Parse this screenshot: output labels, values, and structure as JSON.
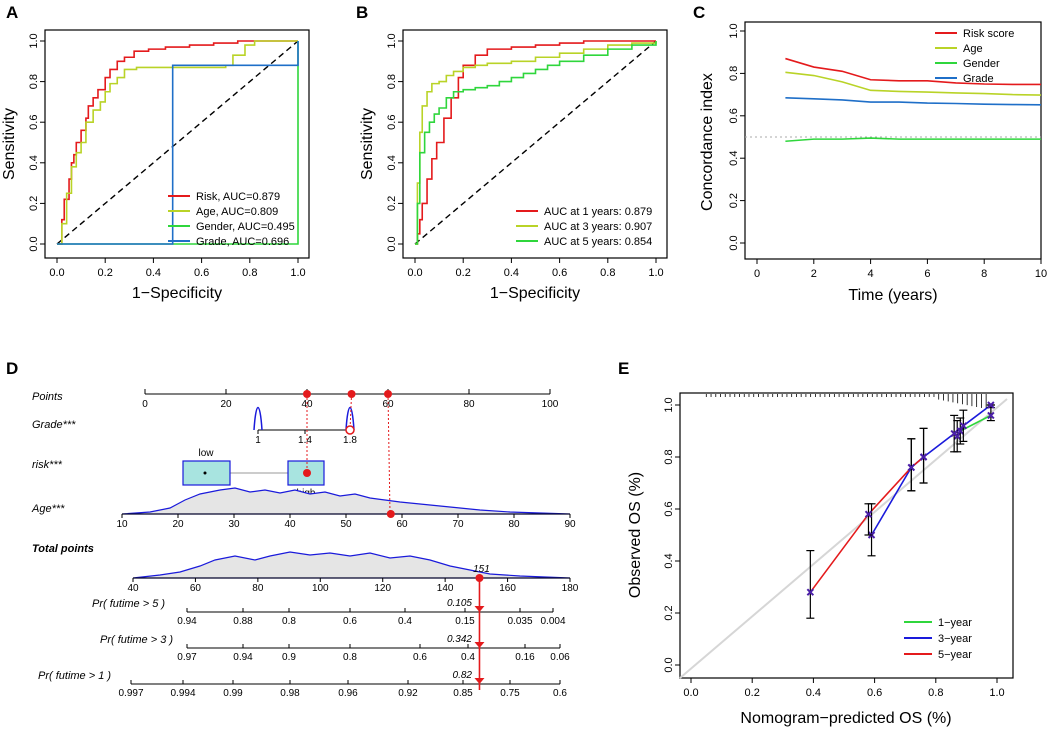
{
  "colors": {
    "red": "#e41a1c",
    "yellowgreen": "#b9d327",
    "green": "#2fd63c",
    "blue": "#1f6fc8",
    "navy": "#1a1adb",
    "box_fill": "#a8e4e0",
    "density_fill": "#e5e5e5",
    "grey_line": "#cccccc"
  },
  "chart_data": [
    {
      "panel": "A",
      "type": "line",
      "subtype": "roc",
      "xlabel": "1−Specificity",
      "ylabel": "Sensitivity",
      "xlim": [
        0,
        1
      ],
      "ylim": [
        0,
        1
      ],
      "xticks": [
        "0.0",
        "0.2",
        "0.4",
        "0.6",
        "0.8",
        "1.0"
      ],
      "yticks": [
        "0.0",
        "0.2",
        "0.4",
        "0.6",
        "0.8",
        "1.0"
      ],
      "legend_position": "bottom-right",
      "series": [
        {
          "name": "Risk, AUC=0.879",
          "color": "#e41a1c",
          "x": [
            0,
            0.02,
            0.03,
            0.05,
            0.06,
            0.07,
            0.08,
            0.1,
            0.12,
            0.13,
            0.15,
            0.17,
            0.2,
            0.22,
            0.25,
            0.28,
            0.32,
            0.38,
            0.45,
            0.55,
            0.65,
            0.75,
            0.85,
            1.0
          ],
          "y": [
            0,
            0.12,
            0.22,
            0.32,
            0.4,
            0.44,
            0.5,
            0.56,
            0.62,
            0.68,
            0.72,
            0.76,
            0.82,
            0.86,
            0.9,
            0.92,
            0.95,
            0.96,
            0.97,
            0.98,
            0.99,
            1.0,
            1.0,
            1.0
          ]
        },
        {
          "name": "Age, AUC=0.809",
          "color": "#b9d327",
          "x": [
            0,
            0.02,
            0.04,
            0.06,
            0.08,
            0.1,
            0.12,
            0.15,
            0.18,
            0.2,
            0.22,
            0.25,
            0.28,
            0.33,
            0.38,
            0.42,
            0.48,
            0.55,
            0.62,
            0.7,
            0.73,
            0.78,
            0.82,
            0.88,
            1.0
          ],
          "y": [
            0,
            0.1,
            0.25,
            0.38,
            0.45,
            0.5,
            0.6,
            0.66,
            0.7,
            0.75,
            0.79,
            0.82,
            0.86,
            0.87,
            0.87,
            0.87,
            0.87,
            0.87,
            0.87,
            0.88,
            0.93,
            0.98,
            1.0,
            1.0,
            1.0
          ]
        },
        {
          "name": "Gender, AUC=0.495",
          "color": "#2fd63c",
          "x": [
            0,
            1.0
          ],
          "y": [
            0,
            1.0
          ]
        },
        {
          "name": "Grade, AUC=0.696",
          "color": "#1f6fc8",
          "x": [
            0,
            0.48,
            1.0
          ],
          "y": [
            0,
            0.88,
            1.0
          ]
        }
      ],
      "reference_line": "dashed diagonal"
    },
    {
      "panel": "B",
      "type": "line",
      "subtype": "roc",
      "xlabel": "1−Specificity",
      "ylabel": "Sensitivity",
      "xlim": [
        0,
        1
      ],
      "ylim": [
        0,
        1
      ],
      "xticks": [
        "0.0",
        "0.2",
        "0.4",
        "0.6",
        "0.8",
        "1.0"
      ],
      "yticks": [
        "0.0",
        "0.2",
        "0.4",
        "0.6",
        "0.8",
        "1.0"
      ],
      "legend_position": "bottom-right",
      "series": [
        {
          "name": "AUC at 1 years: 0.879",
          "color": "#e41a1c",
          "x": [
            0,
            0.01,
            0.02,
            0.03,
            0.05,
            0.07,
            0.09,
            0.12,
            0.15,
            0.18,
            0.2,
            0.25,
            0.3,
            0.4,
            0.5,
            0.6,
            0.7,
            0.8,
            1.0
          ],
          "y": [
            0,
            0.05,
            0.12,
            0.2,
            0.32,
            0.42,
            0.5,
            0.62,
            0.72,
            0.82,
            0.88,
            0.93,
            0.96,
            0.97,
            0.98,
            0.99,
            1.0,
            1.0,
            1.0
          ]
        },
        {
          "name": "AUC at 3 years: 0.907",
          "color": "#b9d327",
          "x": [
            0,
            0.01,
            0.02,
            0.03,
            0.05,
            0.07,
            0.1,
            0.13,
            0.16,
            0.2,
            0.25,
            0.3,
            0.4,
            0.5,
            0.6,
            0.7,
            0.8,
            0.9,
            1.0
          ],
          "y": [
            0,
            0.3,
            0.55,
            0.68,
            0.75,
            0.79,
            0.8,
            0.83,
            0.85,
            0.87,
            0.88,
            0.89,
            0.9,
            0.92,
            0.94,
            0.96,
            0.98,
            0.99,
            1.0
          ]
        },
        {
          "name": "AUC at 5 years: 0.854",
          "color": "#2fd63c",
          "x": [
            0,
            0.01,
            0.02,
            0.04,
            0.06,
            0.08,
            0.1,
            0.13,
            0.16,
            0.2,
            0.25,
            0.3,
            0.35,
            0.4,
            0.45,
            0.5,
            0.55,
            0.6,
            0.7,
            0.8,
            0.9,
            1.0
          ],
          "y": [
            0,
            0.2,
            0.45,
            0.55,
            0.6,
            0.64,
            0.67,
            0.72,
            0.75,
            0.76,
            0.77,
            0.78,
            0.8,
            0.82,
            0.84,
            0.86,
            0.88,
            0.9,
            0.93,
            0.96,
            0.98,
            1.0
          ]
        }
      ],
      "reference_line": "dashed diagonal"
    },
    {
      "panel": "C",
      "type": "line",
      "xlabel": "Time (years)",
      "ylabel": "Concordance index",
      "xlim": [
        0,
        10
      ],
      "ylim": [
        0,
        1
      ],
      "xticks": [
        "0",
        "2",
        "4",
        "6",
        "8",
        "10"
      ],
      "yticks": [
        "0.0",
        "0.2",
        "0.4",
        "0.6",
        "0.8",
        "1.0"
      ],
      "legend_position": "top-right",
      "reference_line": "dotted at 0.5",
      "series": [
        {
          "name": "Risk score",
          "color": "#e41a1c",
          "x": [
            1,
            2,
            3,
            4,
            5,
            6,
            7,
            8,
            9,
            10
          ],
          "y": [
            0.87,
            0.83,
            0.81,
            0.77,
            0.765,
            0.765,
            0.755,
            0.75,
            0.748,
            0.748
          ]
        },
        {
          "name": "Age",
          "color": "#b9d327",
          "x": [
            1,
            2,
            3,
            4,
            5,
            6,
            7,
            8,
            9,
            10
          ],
          "y": [
            0.805,
            0.79,
            0.76,
            0.72,
            0.715,
            0.712,
            0.708,
            0.705,
            0.7,
            0.698
          ]
        },
        {
          "name": "Gender",
          "color": "#2fd63c",
          "x": [
            1,
            2,
            3,
            4,
            5,
            6,
            7,
            8,
            9,
            10
          ],
          "y": [
            0.48,
            0.49,
            0.49,
            0.495,
            0.49,
            0.49,
            0.49,
            0.49,
            0.49,
            0.49
          ]
        },
        {
          "name": "Grade",
          "color": "#1f6fc8",
          "x": [
            1,
            2,
            3,
            4,
            5,
            6,
            7,
            8,
            9,
            10
          ],
          "y": [
            0.685,
            0.68,
            0.675,
            0.665,
            0.665,
            0.66,
            0.658,
            0.655,
            0.653,
            0.652
          ]
        }
      ]
    },
    {
      "panel": "D",
      "type": "nomogram",
      "points_label": "Points",
      "points_ticks": [
        "0",
        "20",
        "40",
        "60",
        "80",
        "100"
      ],
      "variables": [
        {
          "label": "Grade***",
          "ticks": [
            "1",
            "1.4",
            "1.8"
          ]
        },
        {
          "label": "risk***",
          "box_labels": [
            "low",
            "high"
          ]
        },
        {
          "label": "Age***",
          "ticks": [
            "10",
            "20",
            "30",
            "40",
            "50",
            "60",
            "70",
            "80",
            "90"
          ]
        }
      ],
      "total_points_label": "Total points",
      "total_points_ticks": [
        "40",
        "60",
        "80",
        "100",
        "120",
        "140",
        "160",
        "180"
      ],
      "total_points_value": "151",
      "selected_points": [
        40,
        51,
        60
      ],
      "selected_age": 58,
      "probability_axes": [
        {
          "label": "Pr( futime > 5 )",
          "ticks": [
            "0.94",
            "0.88",
            "0.8",
            "0.6",
            "0.4",
            "0.15",
            "0.035",
            "0.004"
          ],
          "value": "0.105"
        },
        {
          "label": "Pr( futime > 3 )",
          "ticks": [
            "0.97",
            "0.94",
            "0.9",
            "0.8",
            "0.6",
            "0.4",
            "0.16",
            "0.06"
          ],
          "value": "0.342"
        },
        {
          "label": "Pr( futime > 1 )",
          "ticks": [
            "0.997",
            "0.994",
            "0.99",
            "0.98",
            "0.96",
            "0.92",
            "0.85",
            "0.75",
            "0.6"
          ],
          "value": "0.82"
        }
      ]
    },
    {
      "panel": "E",
      "type": "line",
      "subtype": "calibration",
      "xlabel": "Nomogram−predicted OS (%)",
      "ylabel": "Observed OS (%)",
      "xlim": [
        0,
        1
      ],
      "ylim": [
        0,
        1
      ],
      "xticks": [
        "0.0",
        "0.2",
        "0.4",
        "0.6",
        "0.8",
        "1.0"
      ],
      "yticks": [
        "0.0",
        "0.2",
        "0.4",
        "0.6",
        "0.8",
        "1.0"
      ],
      "legend_position": "bottom-right",
      "reference_line": "grey diagonal",
      "series": [
        {
          "name": "1−year",
          "color": "#2fd63c",
          "x": [
            0.87,
            0.88,
            0.98
          ],
          "y": [
            0.88,
            0.9,
            0.96
          ],
          "err_low": [
            0.82,
            0.85,
            0.94
          ],
          "err_high": [
            0.94,
            0.95,
            1.0
          ]
        },
        {
          "name": "3−year",
          "color": "#1a1adb",
          "x": [
            0.59,
            0.72,
            0.76,
            0.86,
            0.89,
            0.98
          ],
          "y": [
            0.5,
            0.76,
            0.8,
            0.89,
            0.92,
            1.0
          ],
          "err_low": [
            0.42,
            0.67,
            0.7,
            0.82,
            0.86,
            0.99
          ],
          "err_high": [
            0.62,
            0.87,
            0.91,
            0.96,
            0.98,
            1.0
          ]
        },
        {
          "name": "5−year",
          "color": "#e41a1c",
          "x": [
            0.39,
            0.58,
            0.72,
            0.76
          ],
          "y": [
            0.28,
            0.58,
            0.76,
            0.8
          ],
          "err_low": [
            0.18,
            0.5,
            0.67,
            0.7
          ],
          "err_high": [
            0.44,
            0.62,
            0.87,
            0.91
          ]
        }
      ]
    }
  ]
}
